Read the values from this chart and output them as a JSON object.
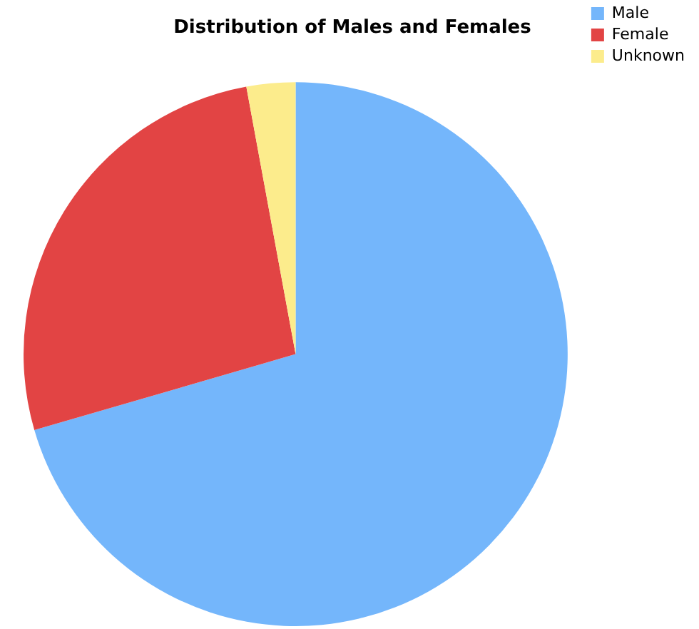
{
  "chart_data": {
    "type": "pie",
    "title": "Distribution of Males and Females",
    "categories": [
      "Male",
      "Female",
      "Unknown"
    ],
    "values": [
      70.5,
      26.6,
      2.9
    ],
    "colors": [
      "#74b6fb",
      "#e24444",
      "#fcec8c"
    ],
    "legend": "top right"
  }
}
